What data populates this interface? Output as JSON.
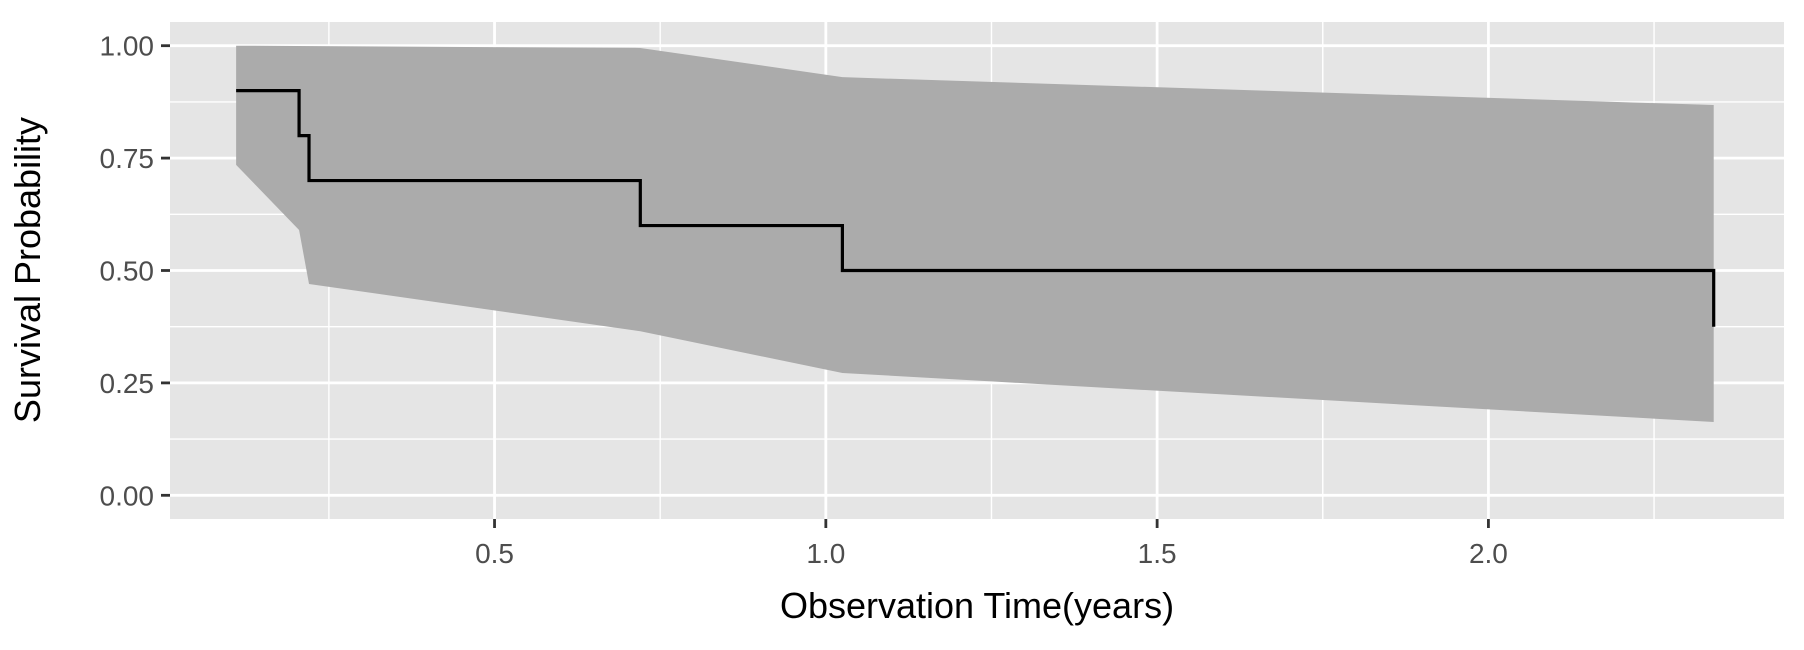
{
  "chart_data": {
    "type": "line",
    "subtype": "kaplan-meier-step",
    "title": "",
    "xlabel": "Observation Time(years)",
    "ylabel": "Survival Probability",
    "xlim": [
      0.12,
      2.34
    ],
    "ylim": [
      0,
      1
    ],
    "x_ticks": [
      0.5,
      1.0,
      1.5,
      2.0
    ],
    "x_tick_labels": [
      "0.5",
      "1.0",
      "1.5",
      "2.0"
    ],
    "y_ticks": [
      0,
      0.25,
      0.5,
      0.75,
      1
    ],
    "y_tick_labels": [
      "0.00",
      "0.25",
      "0.50",
      "0.75",
      "1.00"
    ],
    "grid": true,
    "legend": false,
    "series": [
      {
        "steps": [
          {
            "x": 0.11,
            "y": 0.9
          },
          {
            "x": 0.205,
            "y": 0.8
          },
          {
            "x": 0.22,
            "y": 0.7
          },
          {
            "x": 0.72,
            "y": 0.6
          },
          {
            "x": 1.025,
            "y": 0.5
          },
          {
            "x": 2.34,
            "y": 0.375
          }
        ],
        "end_x": 2.34,
        "color": "#000000"
      }
    ],
    "confidence_band": {
      "upper": [
        {
          "x": 0.11,
          "y": 1.0
        },
        {
          "x": 0.72,
          "y": 0.995
        },
        {
          "x": 1.025,
          "y": 0.93
        },
        {
          "x": 2.34,
          "y": 0.868
        }
      ],
      "lower": [
        {
          "x": 0.11,
          "y": 0.735
        },
        {
          "x": 0.205,
          "y": 0.59
        },
        {
          "x": 0.22,
          "y": 0.47
        },
        {
          "x": 0.72,
          "y": 0.365
        },
        {
          "x": 1.025,
          "y": 0.272
        },
        {
          "x": 2.34,
          "y": 0.163
        }
      ],
      "color": "#ababab"
    },
    "colors": {
      "panel_background": "#e5e5e5",
      "grid_line": "#ffffff",
      "line": "#000000",
      "band": "#ababab",
      "tick_label": "#4d4d4d",
      "axis_title": "#000000",
      "tick_mark": "#333333"
    }
  }
}
